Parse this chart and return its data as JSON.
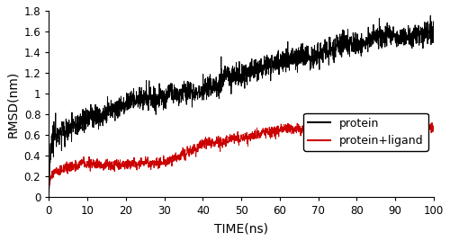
{
  "title": "",
  "xlabel": "TIME(ns)",
  "ylabel": "RMSD(nm)",
  "xlim": [
    0,
    100
  ],
  "ylim": [
    0,
    1.8
  ],
  "xticks": [
    0,
    10,
    20,
    30,
    40,
    50,
    60,
    70,
    80,
    90,
    100
  ],
  "yticks": [
    0,
    0.2,
    0.4,
    0.6,
    0.8,
    1.0,
    1.2,
    1.4,
    1.6,
    1.8
  ],
  "protein_color": "#000000",
  "ligand_color": "#cc0000",
  "legend_labels": [
    "protein",
    "protein+ligand"
  ],
  "linewidth": 0.7,
  "seed_protein": 42,
  "seed_ligand": 77,
  "n_points": 2000
}
